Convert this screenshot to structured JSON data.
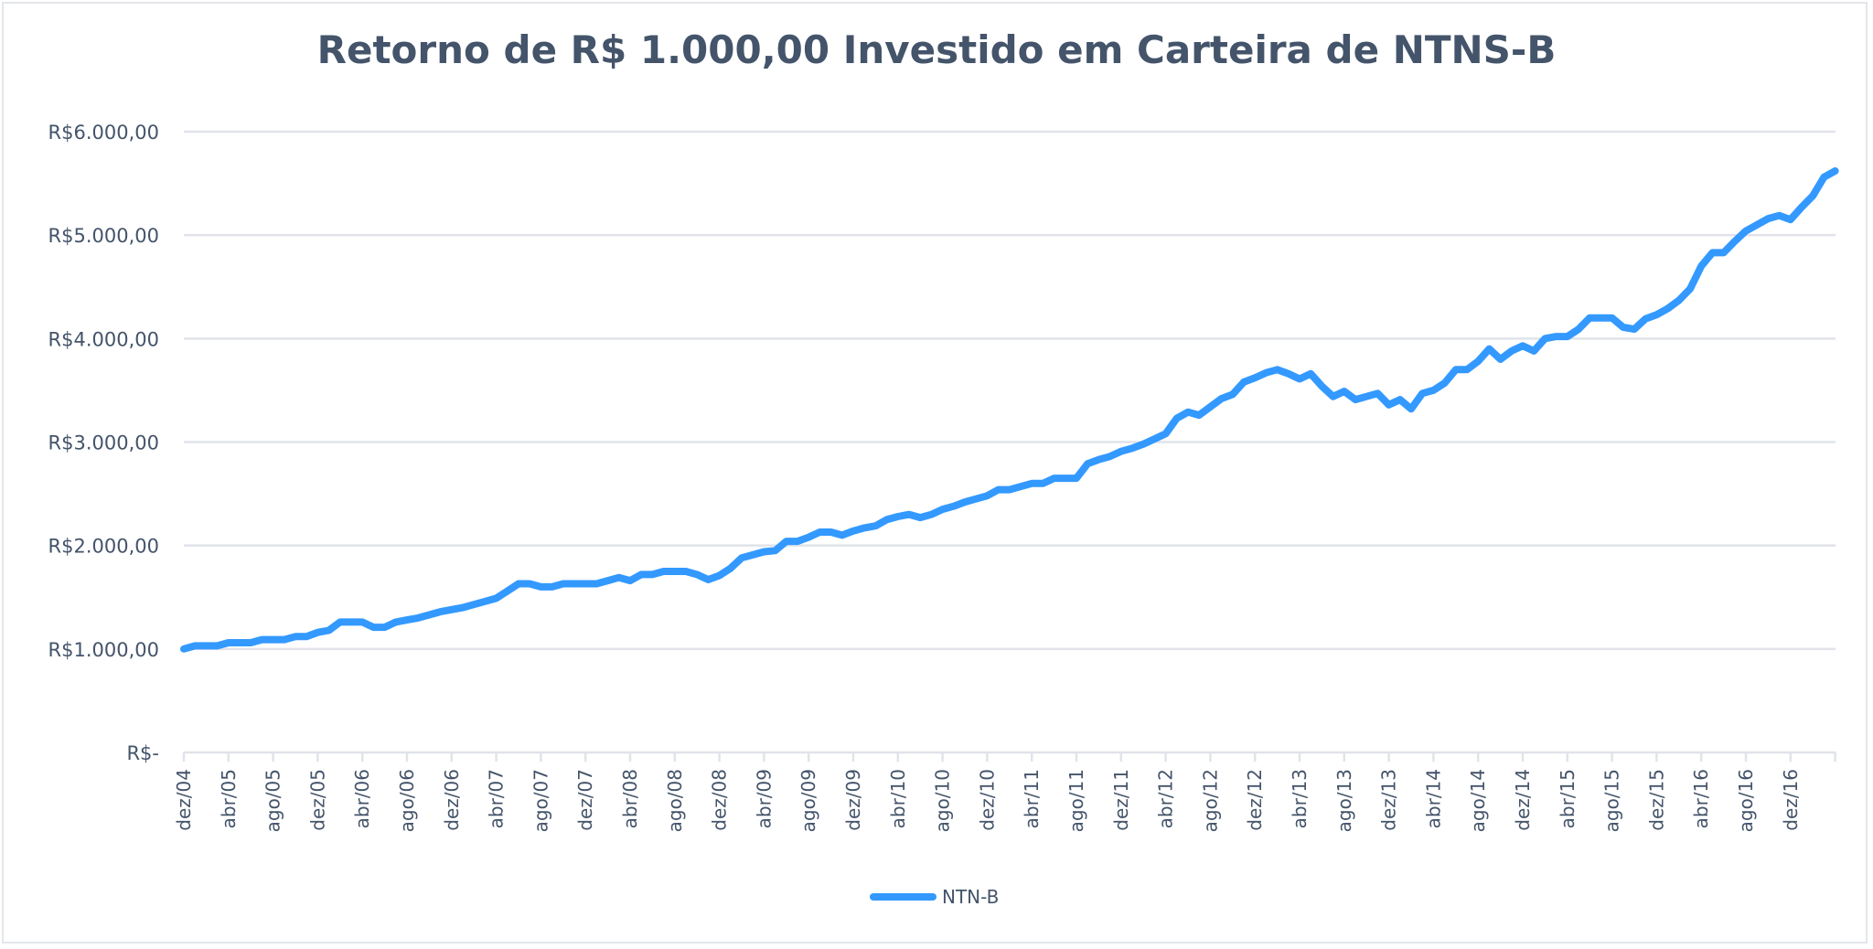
{
  "chart_data": {
    "type": "line",
    "title": "Retorno de R$ 1.000,00 Investido em Carteira de NTNS-B",
    "xlabel": "",
    "ylabel": "",
    "ylim": [
      0,
      6000
    ],
    "y_ticks": [
      0,
      1000,
      2000,
      3000,
      4000,
      5000,
      6000
    ],
    "y_tick_labels": [
      "R$-",
      "R$1.000,00",
      "R$2.000,00",
      "R$3.000,00",
      "R$4.000,00",
      "R$5.000,00",
      "R$6.000,00"
    ],
    "x_start": "dez/04",
    "x_tick_labels": [
      "dez/04",
      "abr/05",
      "ago/05",
      "dez/05",
      "abr/06",
      "ago/06",
      "dez/06",
      "abr/07",
      "ago/07",
      "dez/07",
      "abr/08",
      "ago/08",
      "dez/08",
      "abr/09",
      "ago/09",
      "dez/09",
      "abr/10",
      "ago/10",
      "dez/10",
      "abr/11",
      "ago/11",
      "dez/11",
      "abr/12",
      "ago/12",
      "dez/12",
      "abr/13",
      "ago/13",
      "dez/13",
      "abr/14",
      "ago/14",
      "dez/14",
      "abr/15",
      "ago/15",
      "dez/15",
      "abr/16",
      "ago/16",
      "dez/16"
    ],
    "grid": true,
    "legend_position": "bottom",
    "series": [
      {
        "name": "NTN-B",
        "color": "#3399ff",
        "values": [
          1000,
          1030,
          1030,
          1030,
          1060,
          1060,
          1060,
          1090,
          1090,
          1090,
          1120,
          1120,
          1160,
          1180,
          1260,
          1260,
          1260,
          1210,
          1210,
          1260,
          1280,
          1300,
          1330,
          1360,
          1380,
          1400,
          1430,
          1460,
          1490,
          1560,
          1630,
          1630,
          1600,
          1600,
          1630,
          1630,
          1630,
          1630,
          1660,
          1690,
          1660,
          1720,
          1720,
          1750,
          1750,
          1750,
          1720,
          1670,
          1710,
          1780,
          1880,
          1910,
          1940,
          1950,
          2040,
          2040,
          2080,
          2130,
          2130,
          2100,
          2140,
          2170,
          2190,
          2250,
          2280,
          2300,
          2270,
          2300,
          2350,
          2380,
          2420,
          2450,
          2480,
          2540,
          2540,
          2570,
          2600,
          2600,
          2650,
          2650,
          2650,
          2790,
          2830,
          2860,
          2910,
          2940,
          2980,
          3030,
          3080,
          3230,
          3290,
          3260,
          3340,
          3420,
          3460,
          3580,
          3620,
          3670,
          3700,
          3660,
          3610,
          3660,
          3540,
          3440,
          3490,
          3410,
          3440,
          3470,
          3360,
          3410,
          3320,
          3470,
          3500,
          3570,
          3700,
          3700,
          3780,
          3900,
          3800,
          3880,
          3930,
          3880,
          4000,
          4020,
          4020,
          4090,
          4200,
          4200,
          4200,
          4110,
          4090,
          4190,
          4230,
          4290,
          4370,
          4480,
          4700,
          4830,
          4830,
          4940,
          5040,
          5100,
          5160,
          5190,
          5150,
          5270,
          5380,
          5560,
          5620
        ]
      }
    ]
  },
  "colors": {
    "text": "#44546a",
    "grid": "#e1e3ea",
    "line": "#3399ff"
  }
}
